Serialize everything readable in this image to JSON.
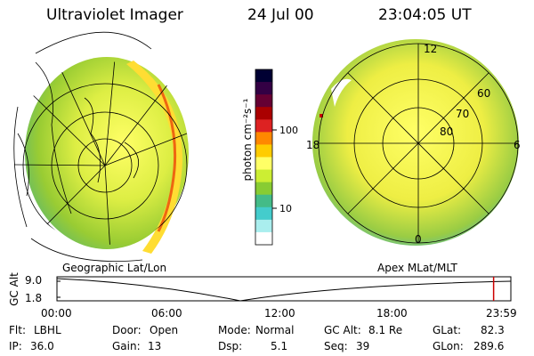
{
  "header": {
    "title": "Ultraviolet Imager",
    "date": "24 Jul 00",
    "time": "23:04:05 UT"
  },
  "colorbar": {
    "label": "photon cm⁻²s⁻¹",
    "ticks": [
      "100",
      "10"
    ],
    "colors": [
      "#000033",
      "#330044",
      "#660033",
      "#aa0000",
      "#dd2222",
      "#ff8800",
      "#ffcc00",
      "#ffff66",
      "#ccee33",
      "#88cc33",
      "#44bb88",
      "#44cccc",
      "#aaeeee",
      "#ffffff"
    ]
  },
  "left_panel": {
    "label": "Geographic Lat/Lon"
  },
  "right_panel": {
    "label": "Apex MLat/MLT",
    "mlt_labels": {
      "top": "12",
      "left": "18",
      "right": "6",
      "bottom": "0"
    },
    "lat_labels": [
      "60",
      "70",
      "80"
    ]
  },
  "timeline": {
    "ylabel": "GC Alt",
    "y_ticks": [
      "9.0",
      "1.8"
    ],
    "x_ticks": [
      "00:00",
      "06:00",
      "12:00",
      "18:00",
      "23:59"
    ],
    "current_time_fraction": 0.962,
    "marker_color": "#cc0000"
  },
  "info": {
    "filter_label": "Flt:",
    "filter_value": "LBHL",
    "ip_label": "IP:",
    "ip_value": "36.0",
    "door_label": "Door:",
    "door_value": "Open",
    "gain_label": "Gain:",
    "gain_value": "13",
    "mode_label": "Mode:",
    "mode_value": "Normal",
    "dsp_label": "Dsp:",
    "dsp_value": "5.1",
    "gcalt_label": "GC Alt:",
    "gcalt_value": "8.1 Re",
    "seq_label": "Seq:",
    "seq_value": "39",
    "glat_label": "GLat:",
    "glat_value": "82.3",
    "glon_label": "GLon:",
    "glon_value": "289.6"
  }
}
